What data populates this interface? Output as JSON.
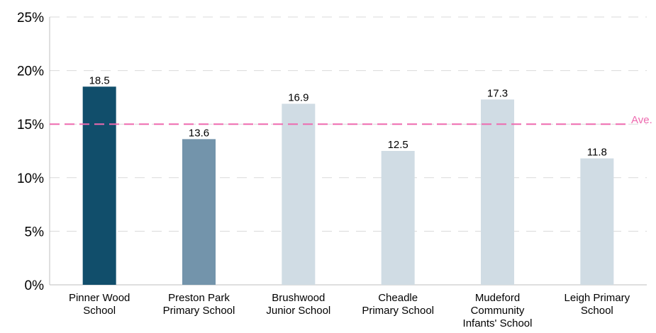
{
  "chart_data": {
    "type": "bar",
    "categories": [
      [
        "Pinner Wood",
        "School"
      ],
      [
        "Preston Park",
        "Primary School"
      ],
      [
        "Brushwood",
        "Junior School"
      ],
      [
        "Cheadle",
        "Primary School"
      ],
      [
        "Mudeford",
        "Community",
        "Infants' School"
      ],
      [
        "Leigh Primary",
        "School"
      ]
    ],
    "values": [
      18.5,
      13.6,
      16.9,
      12.5,
      17.3,
      11.8
    ],
    "value_labels": [
      "18.5",
      "13.6",
      "16.9",
      "12.5",
      "17.3",
      "11.8"
    ],
    "bar_colors": [
      "#114e6b",
      "#7394ab",
      "#d0dce4",
      "#d0dce4",
      "#d0dce4",
      "#d0dce4"
    ],
    "ylim": [
      0,
      25
    ],
    "yticks": [
      0,
      5,
      10,
      15,
      20,
      25
    ],
    "ytick_labels": [
      "0%",
      "5%",
      "10%",
      "15%",
      "20%",
      "25%"
    ],
    "grid": true,
    "grid_color": "#d9d9d9",
    "axis_color": "#bfbfbf",
    "average": {
      "value": 15,
      "label": "Ave.",
      "color": "#ee6aaf"
    }
  }
}
